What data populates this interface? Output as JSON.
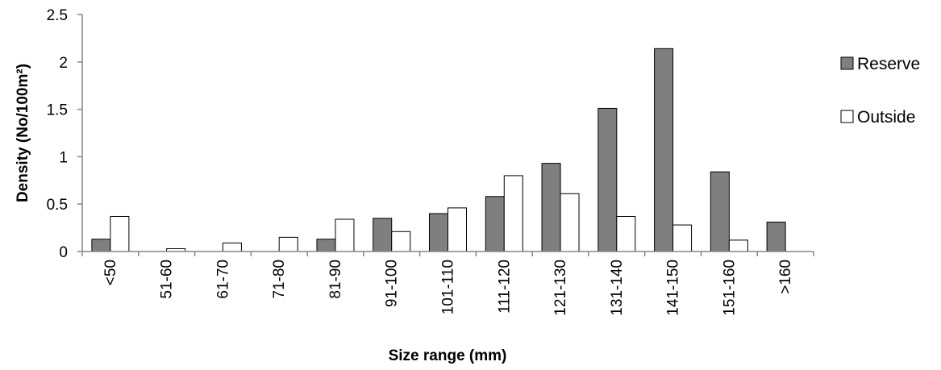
{
  "chart_data": {
    "type": "bar",
    "categories": [
      "<50",
      "51-60",
      "61-70",
      "71-80",
      "81-90",
      "91-100",
      "101-110",
      "111-120",
      "121-130",
      "131-140",
      "141-150",
      "151-160",
      ">160"
    ],
    "series": [
      {
        "name": "Reserve",
        "color": "#7f7f7f",
        "values": [
          0.13,
          0,
          0,
          0,
          0.13,
          0.35,
          0.4,
          0.58,
          0.93,
          1.51,
          2.14,
          0.84,
          0.31
        ]
      },
      {
        "name": "Outside",
        "color": "#ffffff",
        "values": [
          0.37,
          0.03,
          0.09,
          0.15,
          0.34,
          0.21,
          0.46,
          0.8,
          0.61,
          0.37,
          0.28,
          0.12,
          0
        ]
      }
    ],
    "xlabel": "Size range (mm)",
    "ylabel": "Density (No/100m²)",
    "ylim": [
      0,
      2.5
    ],
    "yticks": [
      0,
      0.5,
      1,
      1.5,
      2,
      2.5
    ],
    "ytick_labels": [
      "0",
      "0.5",
      "1",
      "1.5",
      "2",
      "2.5"
    ],
    "grid": false,
    "legend_position": "right"
  }
}
